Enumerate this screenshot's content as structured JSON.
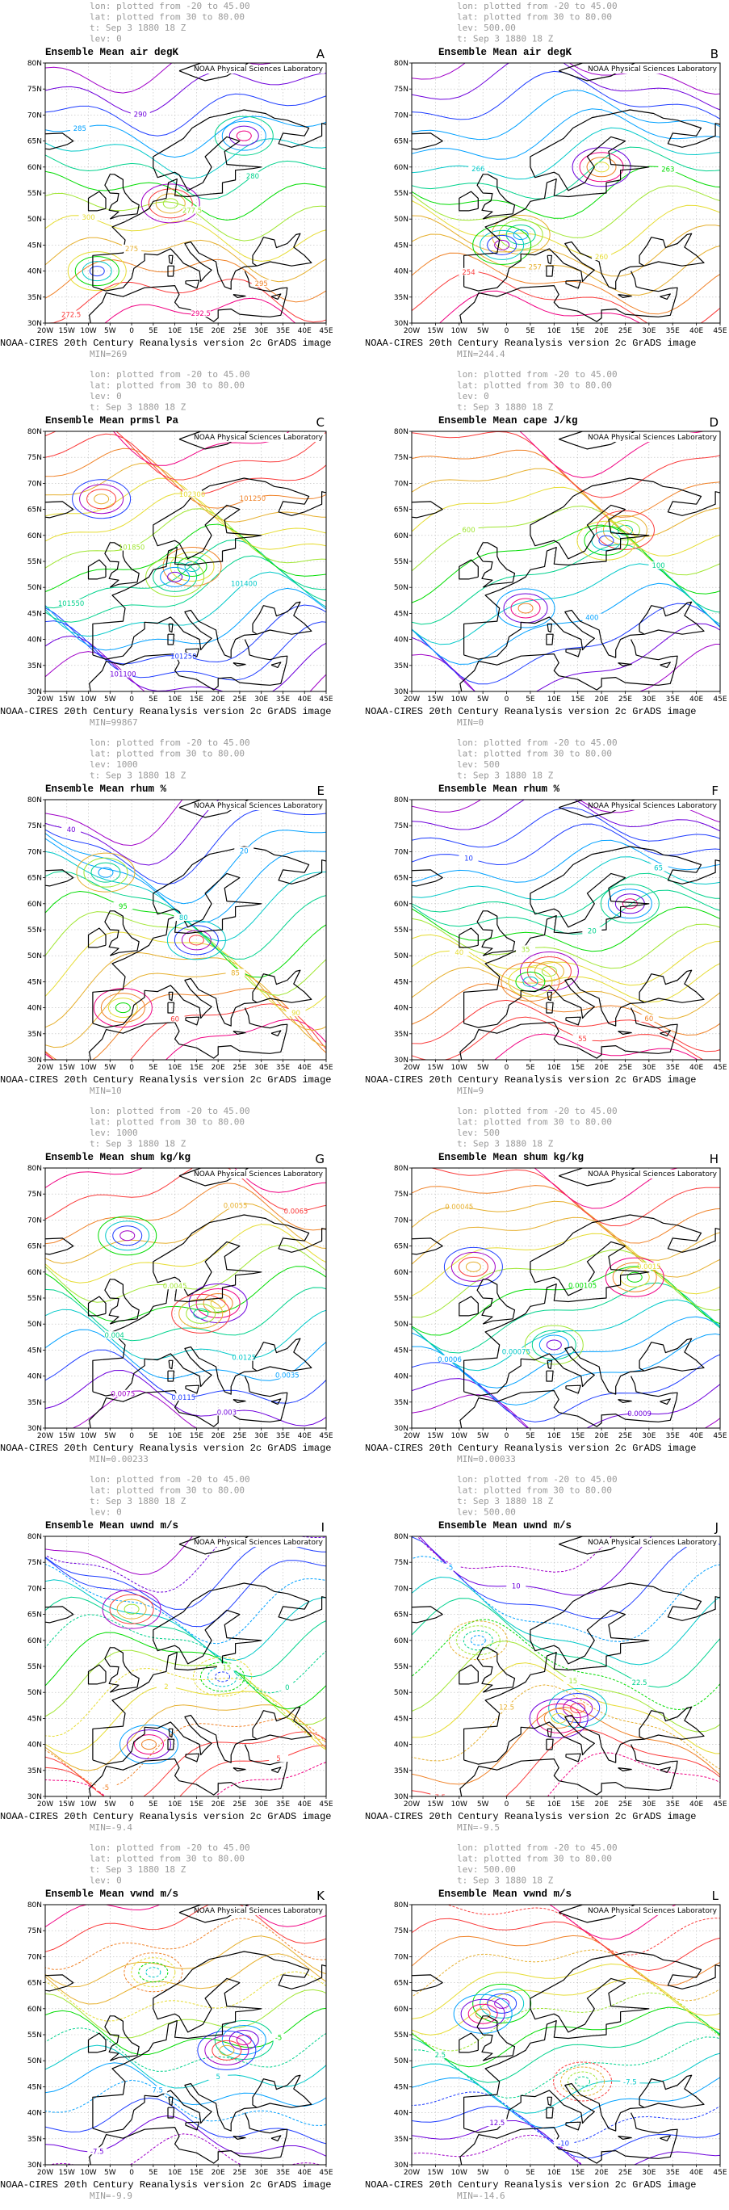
{
  "shared": {
    "credit": "NOAA Physical Sciences Laboratory",
    "footer": "NOAA-CIRES 20th Century Reanalysis version 2c GrADS image",
    "lon_range": [
      -20,
      45
    ],
    "lat_range": [
      30,
      80
    ],
    "lon_ticks": [
      {
        "value": -20,
        "label": "20W"
      },
      {
        "value": -15,
        "label": "15W"
      },
      {
        "value": -10,
        "label": "10W"
      },
      {
        "value": -5,
        "label": "5W"
      },
      0,
      {
        "value": 5,
        "label": "5E"
      },
      {
        "value": 10,
        "label": "10E"
      },
      {
        "value": 15,
        "label": "15E"
      },
      {
        "value": 20,
        "label": "20E"
      },
      {
        "value": 25,
        "label": "25E"
      },
      {
        "value": 30,
        "label": "30E"
      },
      {
        "value": 35,
        "label": "35E"
      },
      {
        "value": 40,
        "label": "40E"
      },
      {
        "value": 45,
        "label": "45E"
      }
    ],
    "lat_ticks": [
      {
        "value": 30,
        "label": "30N"
      },
      {
        "value": 35,
        "label": "35N"
      },
      {
        "value": 40,
        "label": "40N"
      },
      {
        "value": 45,
        "label": "45N"
      },
      {
        "value": 50,
        "label": "50N"
      },
      {
        "value": 55,
        "label": "55N"
      },
      {
        "value": 60,
        "label": "60N"
      },
      {
        "value": 65,
        "label": "65N"
      },
      {
        "value": 70,
        "label": "70N"
      },
      {
        "value": 75,
        "label": "75N"
      },
      {
        "value": 80,
        "label": "80N"
      }
    ]
  },
  "panels": [
    {
      "letter": "A",
      "title": "Ensemble Mean air degK",
      "header": [
        "lon: plotted from -20 to 45.00",
        "lat: plotted from 30 to 80.00",
        "t: Sep 3 1880 18 Z",
        "lev: 0"
      ],
      "min": "MIN=269",
      "contour_labels": [
        "272.5",
        "275",
        "277.5",
        "280",
        "285",
        "290",
        "292.5",
        "295",
        "300"
      ]
    },
    {
      "letter": "B",
      "title": "Ensemble Mean air degK",
      "header": [
        "lon: plotted from -20 to 45.00",
        "lat: plotted from 30 to 80.00",
        "lev: 500.00",
        "t: Sep 3 1880 18 Z"
      ],
      "min": "MIN=244.4",
      "contour_labels": [
        "254",
        "257",
        "260",
        "263",
        "266"
      ]
    },
    {
      "letter": "C",
      "title": "Ensemble Mean prmsl Pa",
      "header": [
        "lon: plotted from -20 to 45.00",
        "lat: plotted from 30 to 80.00",
        "lev: 0",
        "t: Sep 3 1880 18 Z"
      ],
      "min": "MIN=99867",
      "contour_labels": [
        "101100",
        "101250",
        "101400",
        "101550",
        "101850",
        "102300",
        "101250",
        "101100"
      ]
    },
    {
      "letter": "D",
      "title": "Ensemble Mean cape J/kg",
      "header": [
        "lon: plotted from -20 to 45.00",
        "lat: plotted from 30 to 80.00",
        "lev: 0",
        "t: Sep 3 1880 18 Z"
      ],
      "min": "MIN=0",
      "contour_labels": [
        "200",
        "400",
        "100",
        "600"
      ]
    },
    {
      "letter": "E",
      "title": "Ensemble Mean rhum %",
      "header": [
        "lon: plotted from -20 to 45.00",
        "lat: plotted from 30 to 80.00",
        "lev: 1000",
        "t: Sep 3 1880 18 Z"
      ],
      "min": "MIN=10",
      "contour_labels": [
        "60",
        "85",
        "90",
        "95",
        "80",
        "20",
        "40"
      ]
    },
    {
      "letter": "F",
      "title": "Ensemble Mean rhum %",
      "header": [
        "lon: plotted from -20 to 45.00",
        "lat: plotted from 30 to 80.00",
        "lev: 500",
        "t: Sep 3 1880 18 Z"
      ],
      "min": "MIN=9",
      "contour_labels": [
        "55",
        "60",
        "40",
        "35",
        "20",
        "65",
        "10"
      ]
    },
    {
      "letter": "G",
      "title": "Ensemble Mean shum kg/kg",
      "header": [
        "lon: plotted from -20 to 45.00",
        "lat: plotted from 30 to 80.00",
        "lev: 1000",
        "t: Sep 3 1880 18 Z"
      ],
      "min": "MIN=0.00233",
      "contour_labels": [
        "0.003",
        "0.0035",
        "0.004",
        "0.0045",
        "0.0055",
        "0.0065",
        "0.0075",
        "0.0115",
        "0.0125"
      ]
    },
    {
      "letter": "H",
      "title": "Ensemble Mean shum kg/kg",
      "header": [
        "lon: plotted from -20 to 45.00",
        "lat: plotted from 30 to 80.00",
        "lev: 500",
        "t: Sep 3 1880 18 Z"
      ],
      "min": "MIN=0.00033",
      "contour_labels": [
        "0.0009",
        "0.0006",
        "0.00075",
        "0.00105",
        "0.0015",
        "0.00045"
      ]
    },
    {
      "letter": "I",
      "title": "Ensemble Mean uwnd m/s",
      "header": [
        "lon: plotted from -20 to 45.00",
        "lat: plotted from 30 to 80.00",
        "t: Sep 3 1880 18 Z",
        "lev: 0"
      ],
      "min": "MIN=-9.4",
      "contour_labels": [
        "5",
        "-5",
        "2",
        "15",
        "0"
      ]
    },
    {
      "letter": "J",
      "title": "Ensemble Mean uwnd m/s",
      "header": [
        "lon: plotted from -20 to 45.00",
        "lat: plotted from 30 to 80.00",
        "t: Sep 3 1880 18 Z",
        "lev: 500.00"
      ],
      "min": "MIN=-9.5",
      "contour_labels": [
        "7.5",
        "12.5",
        "15",
        "22.5",
        "-5",
        "10"
      ]
    },
    {
      "letter": "K",
      "title": "Ensemble Mean vwnd m/s",
      "header": [
        "lon: plotted from -20 to 45.00",
        "lat: plotted from 30 to 80.00",
        "t: Sep 3 1880 18 Z",
        "lev: 0"
      ],
      "min": "MIN=-9.9",
      "contour_labels": [
        "-7.5",
        "7.5",
        "5",
        "-5"
      ]
    },
    {
      "letter": "L",
      "title": "Ensemble Mean vwnd m/s",
      "header": [
        "lon: plotted from -20 to 45.00",
        "lat: plotted from 30 to 80.00",
        "lev: 500.00",
        "t: Sep 3 1880 18 Z"
      ],
      "min": "MIN=-14.6",
      "contour_labels": [
        "12.5",
        "-10",
        "-7.5",
        "2.5"
      ]
    }
  ]
}
